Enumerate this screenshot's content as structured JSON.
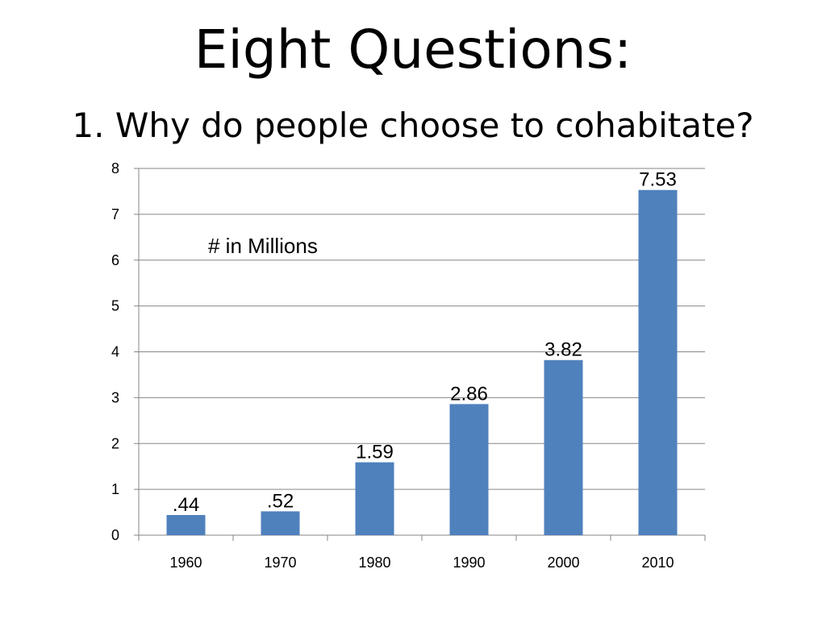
{
  "slide": {
    "title": "Eight Questions:",
    "subtitle": "1. Why do people choose to cohabitate?"
  },
  "chart_data": {
    "type": "bar",
    "title": "",
    "xlabel": "",
    "ylabel": "",
    "annotation": "# in Millions",
    "categories": [
      "1960",
      "1970",
      "1980",
      "1990",
      "2000",
      "2010"
    ],
    "values": [
      0.44,
      0.52,
      1.59,
      2.86,
      3.82,
      7.53
    ],
    "data_labels": [
      ".44",
      ".52",
      "1.59",
      "2.86",
      "3.82",
      "7.53"
    ],
    "ylim": [
      0,
      8
    ],
    "yticks": [
      0,
      1,
      2,
      3,
      4,
      5,
      6,
      7,
      8
    ],
    "grid": true,
    "legend": "none",
    "colors": {
      "bar": "#4F81BD",
      "grid": "#868686",
      "axis": "#868686",
      "text": "#000000"
    }
  }
}
